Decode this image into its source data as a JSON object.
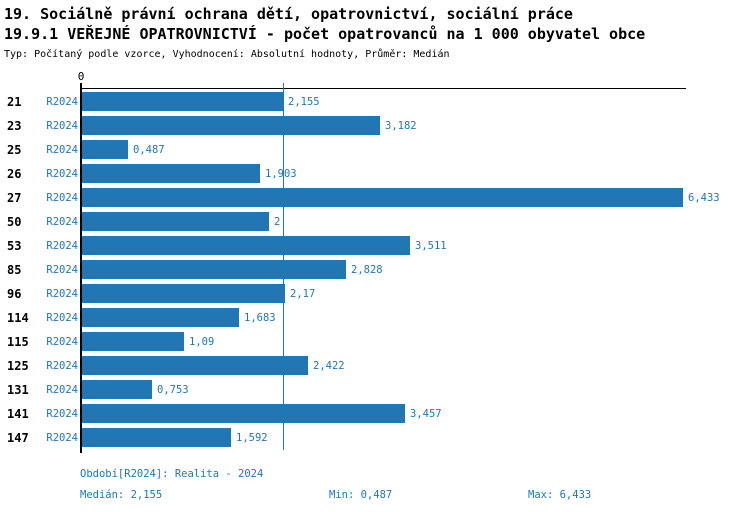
{
  "header": {
    "title1": "19. Sociálně právní ochrana dětí, opatrovnictví, sociální práce",
    "title2": "19.9.1 VEŘEJNÉ OPATROVNICTVÍ - počet opatrovanců na 1 000 obyvatel obce",
    "subtitle": "Typ: Počítaný podle vzorce, Vyhodnocení: Absolutní hodnoty, Průměr: Medián"
  },
  "chart_data": {
    "type": "bar",
    "orientation": "horizontal",
    "title": "19.9.1 VEŘEJNÉ OPATROVNICTVÍ - počet opatrovanců na 1 000 obyvatel obce",
    "categories": [
      "21",
      "23",
      "25",
      "26",
      "27",
      "50",
      "53",
      "85",
      "96",
      "114",
      "115",
      "125",
      "131",
      "141",
      "147"
    ],
    "series": [
      {
        "name": "R2024",
        "values": [
          2.155,
          3.182,
          0.487,
          1.903,
          6.433,
          2,
          3.511,
          2.828,
          2.17,
          1.683,
          1.09,
          2.422,
          0.753,
          3.457,
          1.592
        ],
        "value_labels": [
          "2,155",
          "3,182",
          "0,487",
          "1,903",
          "6,433",
          "2",
          "3,511",
          "2,828",
          "2,17",
          "1,683",
          "1,09",
          "2,422",
          "0,753",
          "3,457",
          "1,592"
        ]
      }
    ],
    "xlim": [
      0,
      6.433
    ],
    "x_axis_zero_label": "0",
    "median_value": 2.155,
    "grid": false,
    "legend": false,
    "colors": {
      "bar": "#2077b4",
      "label_text": "#2077b4",
      "median_line": "#2077b4",
      "axis": "#000000"
    }
  },
  "footer": {
    "period": "Období[R2024]: Realita - 2024",
    "median": "Medián: 2,155",
    "min": "Min: 0,487",
    "max": "Max: 6,433"
  }
}
